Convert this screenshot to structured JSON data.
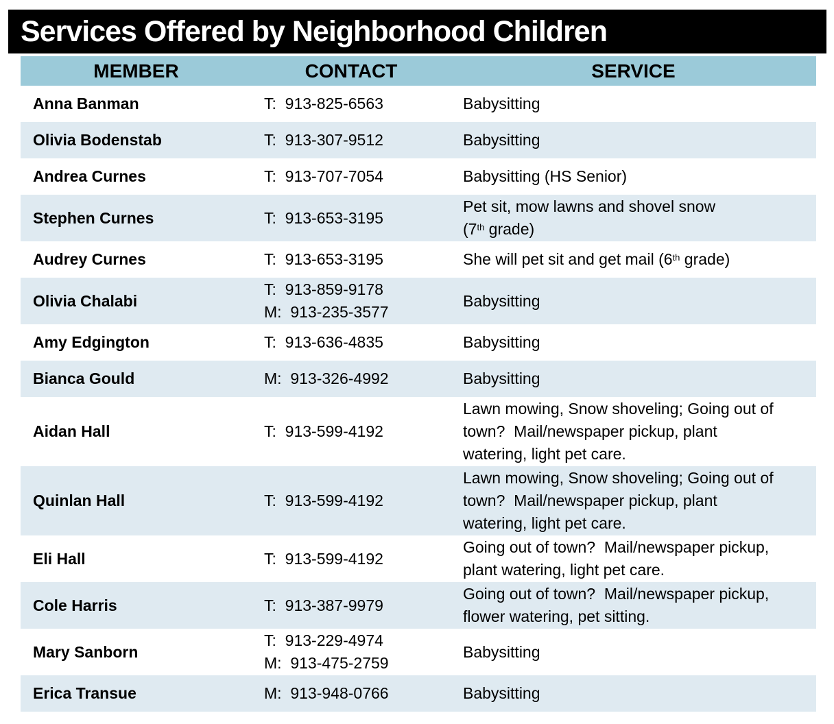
{
  "title": "Services Offered by Neighborhood Children",
  "columns": [
    "MEMBER",
    "CONTACT",
    "SERVICE"
  ],
  "colors": {
    "title_bg": "#000000",
    "title_text": "#ffffff",
    "header_bg": "#9BCAD9",
    "stripe_bg": "#DFEAF1",
    "row_bg": "#ffffff",
    "text": "#000000"
  },
  "rows": [
    {
      "member": "Anna Banman",
      "contact": [
        "T:  913-825-6563"
      ],
      "service": [
        [
          "Babysitting"
        ]
      ]
    },
    {
      "member": "Olivia Bodenstab",
      "contact": [
        "T:  913-307-9512"
      ],
      "service": [
        [
          "Babysitting"
        ]
      ]
    },
    {
      "member": "Andrea Curnes",
      "contact": [
        "T:  913-707-7054"
      ],
      "service": [
        [
          "Babysitting (HS Senior)"
        ]
      ]
    },
    {
      "member": "Stephen Curnes",
      "contact": [
        "T:  913-653-3195"
      ],
      "service": [
        [
          "Pet sit, mow lawns and shovel snow"
        ],
        [
          "(7",
          {
            "sup": "th"
          },
          " grade)"
        ]
      ]
    },
    {
      "member": "Audrey Curnes",
      "contact": [
        "T:  913-653-3195"
      ],
      "service": [
        [
          "She will pet sit and get mail (6",
          {
            "sup": "th"
          },
          " grade)"
        ]
      ]
    },
    {
      "member": "Olivia Chalabi",
      "contact": [
        "T:  913-859-9178",
        "M:  913-235-3577"
      ],
      "service": [
        [
          "Babysitting"
        ]
      ]
    },
    {
      "member": "Amy Edgington",
      "contact": [
        "T:  913-636-4835"
      ],
      "service": [
        [
          "Babysitting"
        ]
      ]
    },
    {
      "member": "Bianca Gould",
      "contact": [
        "M:  913-326-4992"
      ],
      "service": [
        [
          "Babysitting"
        ]
      ]
    },
    {
      "member": "Aidan Hall",
      "contact": [
        "T:  913-599-4192"
      ],
      "service": [
        [
          "Lawn mowing, Snow shoveling; Going out of"
        ],
        [
          "town?  Mail/newspaper pickup, plant"
        ],
        [
          "watering, light pet care."
        ]
      ]
    },
    {
      "member": "Quinlan Hall",
      "contact": [
        "T:  913-599-4192"
      ],
      "service": [
        [
          "Lawn mowing, Snow shoveling; Going out of"
        ],
        [
          "town?  Mail/newspaper pickup, plant"
        ],
        [
          "watering, light pet care."
        ]
      ]
    },
    {
      "member": "Eli Hall",
      "contact": [
        "T:  913-599-4192"
      ],
      "service": [
        [
          "Going out of town?  Mail/newspaper pickup,"
        ],
        [
          "plant watering, light pet care."
        ]
      ]
    },
    {
      "member": "Cole Harris",
      "contact": [
        "T:  913-387-9979"
      ],
      "service": [
        [
          "Going out of town?  Mail/newspaper pickup,"
        ],
        [
          "flower watering, pet sitting."
        ]
      ]
    },
    {
      "member": "Mary Sanborn",
      "contact": [
        "T:  913-229-4974",
        "M:  913-475-2759"
      ],
      "service": [
        [
          "Babysitting"
        ]
      ]
    },
    {
      "member": "Erica Transue",
      "contact": [
        "M:  913-948-0766"
      ],
      "service": [
        [
          "Babysitting"
        ]
      ]
    }
  ]
}
